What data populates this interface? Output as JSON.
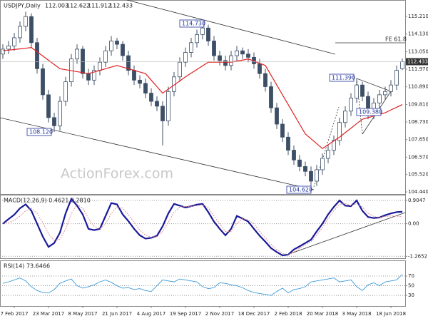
{
  "chart_data": [
    {
      "type": "candlestick",
      "title": "USDJPY,Daily",
      "color": "#3d4f66",
      "open": [
        112.9,
        113.2,
        113.4,
        113.9,
        114.6,
        115.2,
        113.6,
        112.0,
        110.4,
        109.0,
        108.5,
        110.0,
        111.2,
        112.6,
        113.2,
        111.7,
        111.3,
        111.9,
        112.4,
        113.1,
        113.7,
        113.5,
        112.8,
        111.9,
        111.3,
        111.1,
        110.5,
        110.0,
        109.7,
        108.8,
        110.6,
        111.5,
        112.4,
        113.0,
        113.6,
        114.1,
        114.5,
        113.7,
        112.8,
        112.5,
        112.2,
        112.8,
        113.1,
        112.9,
        112.7,
        112.3,
        111.7,
        110.9,
        109.6,
        108.6,
        107.8,
        107.0,
        106.4,
        106.0,
        105.7,
        105.1,
        105.8,
        106.5,
        107.0,
        107.6,
        108.7,
        109.4,
        110.2,
        111.0,
        110.3,
        109.2,
        109.9,
        110.4,
        110.6,
        111.0,
        112.003
      ],
      "high": [
        113.5,
        113.7,
        114.2,
        114.9,
        115.5,
        115.4,
        113.9,
        112.3,
        110.7,
        109.3,
        110.3,
        111.5,
        112.9,
        113.5,
        113.4,
        112.0,
        112.2,
        112.7,
        113.4,
        114.0,
        113.9,
        113.7,
        113.1,
        112.2,
        111.6,
        111.4,
        110.8,
        110.3,
        110.0,
        110.9,
        111.8,
        112.7,
        113.3,
        113.9,
        114.4,
        114.73,
        114.7,
        114.0,
        113.1,
        112.8,
        113.1,
        113.4,
        113.3,
        113.2,
        113.0,
        112.6,
        112.0,
        111.2,
        109.9,
        108.9,
        108.1,
        107.3,
        106.7,
        106.3,
        106.0,
        106.1,
        106.8,
        107.3,
        107.9,
        109.0,
        109.7,
        110.5,
        111.39,
        111.2,
        110.6,
        110.2,
        110.7,
        110.9,
        111.3,
        112.2,
        112.622
      ],
      "low": [
        112.6,
        112.9,
        113.1,
        113.6,
        114.3,
        113.3,
        111.7,
        110.1,
        108.7,
        108.12,
        108.2,
        109.7,
        110.9,
        112.3,
        111.4,
        111.0,
        111.0,
        111.6,
        112.1,
        112.8,
        113.2,
        112.5,
        111.6,
        111.0,
        110.8,
        110.2,
        109.7,
        109.4,
        107.3,
        108.5,
        110.3,
        111.2,
        112.1,
        112.7,
        113.3,
        113.8,
        113.4,
        112.5,
        112.2,
        111.9,
        111.9,
        112.5,
        112.6,
        112.4,
        112.0,
        111.4,
        110.6,
        109.3,
        108.3,
        107.5,
        106.7,
        106.1,
        105.7,
        105.4,
        104.62,
        104.8,
        105.5,
        106.2,
        106.7,
        107.3,
        108.4,
        109.1,
        109.9,
        110.0,
        108.9,
        108.9,
        109.6,
        110.1,
        110.3,
        110.7,
        111.912
      ],
      "close": [
        113.2,
        113.4,
        113.9,
        114.6,
        115.2,
        113.6,
        112.0,
        110.4,
        109.0,
        108.5,
        110.0,
        111.2,
        112.6,
        113.2,
        111.7,
        111.3,
        111.9,
        112.4,
        113.1,
        113.7,
        113.5,
        112.8,
        111.9,
        111.3,
        111.1,
        110.5,
        110.0,
        109.7,
        108.8,
        110.6,
        111.5,
        112.4,
        113.0,
        113.6,
        114.1,
        114.5,
        113.7,
        112.8,
        112.5,
        112.2,
        112.8,
        113.1,
        112.9,
        112.7,
        112.3,
        111.7,
        110.9,
        109.6,
        108.6,
        107.8,
        107.0,
        106.4,
        106.0,
        105.7,
        105.1,
        105.8,
        106.5,
        107.0,
        107.6,
        108.7,
        109.4,
        110.2,
        111.0,
        110.3,
        109.2,
        109.9,
        110.4,
        110.6,
        111.0,
        111.9,
        112.433
      ],
      "ma": {
        "color": "#e02020",
        "values": [
          113.1,
          113.14,
          113.18,
          113.22,
          113.26,
          113.3,
          113.04,
          112.78,
          112.52,
          112.26,
          112.0,
          111.94,
          111.88,
          111.82,
          111.76,
          111.7,
          111.8,
          111.9,
          112.0,
          112.1,
          112.2,
          112.1,
          112.0,
          111.9,
          111.8,
          111.7,
          111.3,
          110.9,
          110.5,
          110.75,
          111.0,
          111.25,
          111.5,
          111.73,
          111.95,
          112.18,
          112.4,
          112.4,
          112.4,
          112.4,
          112.4,
          112.47,
          112.53,
          112.6,
          112.47,
          112.33,
          112.2,
          111.6,
          111.0,
          110.4,
          109.8,
          109.2,
          108.6,
          108.0,
          107.7,
          107.4,
          107.1,
          107.33,
          107.57,
          107.8,
          108.08,
          108.35,
          108.63,
          108.9,
          109.0,
          109.1,
          109.2,
          109.3,
          109.47,
          109.63,
          109.8
        ]
      },
      "ylim": [
        104.31,
        116.13
      ],
      "yticks": [
        {
          "value": 115.21,
          "label": "115.210"
        },
        {
          "value": 114.13,
          "label": "114.130"
        },
        {
          "value": 113.05,
          "label": "113.050"
        },
        {
          "value": 111.97,
          "label": "111.970"
        },
        {
          "value": 110.89,
          "label": "110.890"
        },
        {
          "value": 109.81,
          "label": "109.810"
        },
        {
          "value": 108.73,
          "label": "108.730"
        },
        {
          "value": 107.65,
          "label": "107.650"
        },
        {
          "value": 106.57,
          "label": "106.570"
        },
        {
          "value": 105.52,
          "label": "105.520"
        },
        {
          "value": 104.44,
          "label": "104.440"
        }
      ],
      "annotations": [
        "114.730",
        "108.120",
        "104.620",
        "111.390",
        "109.380"
      ],
      "fe_label": "FE 61.8",
      "watermark": "ActionForex.com"
    },
    {
      "type": "line",
      "title": "MACD(12,26,9) 0.4621 0.2810",
      "series": [
        {
          "color": "#1a1a9a",
          "values": [
            0.0,
            0.18,
            0.35,
            0.6,
            0.75,
            0.5,
            0.0,
            -0.5,
            -0.9,
            -0.75,
            -0.35,
            0.4,
            0.96,
            0.7,
            0.36,
            -0.2,
            -0.25,
            -0.2,
            0.3,
            0.8,
            0.75,
            0.36,
            0.1,
            -0.2,
            -0.45,
            -0.58,
            -0.55,
            -0.47,
            -0.1,
            0.4,
            0.77,
            0.7,
            0.63,
            0.68,
            0.74,
            0.77,
            0.45,
            0.08,
            -0.2,
            -0.45,
            -0.2,
            0.3,
            0.2,
            0.08,
            -0.2,
            -0.47,
            -0.7,
            -0.95,
            -1.1,
            -1.23,
            -1.2,
            -1.0,
            -0.88,
            -0.75,
            -0.62,
            -0.3,
            0.0,
            0.36,
            0.65,
            0.9,
            0.7,
            0.68,
            0.9,
            0.5,
            0.26,
            0.22,
            0.24,
            0.33,
            0.4,
            0.45,
            0.4621
          ]
        },
        {
          "color": "#e08a8a",
          "values": [
            0.05,
            0.05,
            0.12,
            0.3,
            0.5,
            0.6,
            0.4,
            0.05,
            -0.4,
            -0.65,
            -0.6,
            -0.2,
            0.4,
            0.75,
            0.6,
            0.2,
            -0.1,
            -0.2,
            0.0,
            0.4,
            0.65,
            0.6,
            0.35,
            0.05,
            -0.25,
            -0.45,
            -0.52,
            -0.5,
            -0.3,
            0.05,
            0.45,
            0.65,
            0.67,
            0.67,
            0.7,
            0.74,
            0.62,
            0.3,
            0.0,
            -0.3,
            -0.3,
            0.0,
            0.2,
            0.15,
            0.0,
            -0.3,
            -0.55,
            -0.8,
            -1.0,
            -1.15,
            -1.2,
            -1.1,
            -0.95,
            -0.82,
            -0.7,
            -0.45,
            -0.15,
            0.2,
            0.5,
            0.75,
            0.78,
            0.7,
            0.78,
            0.65,
            0.4,
            0.28,
            0.25,
            0.28,
            0.3,
            0.29,
            0.281
          ]
        }
      ],
      "ylim": [
        -1.34,
        1.096
      ],
      "yticks": [
        0.9047,
        {
          "value": 0,
          "label": "0.00"
        },
        -1.2652
      ]
    },
    {
      "type": "line",
      "title": "RSI(14) 73.6466",
      "series": [
        {
          "color": "#3d9ad8",
          "values": [
            55,
            58,
            62,
            66,
            60,
            48,
            40,
            36,
            35,
            42,
            55,
            60,
            64,
            50,
            45,
            48,
            52,
            58,
            62,
            57,
            50,
            45,
            46,
            42,
            44,
            40,
            38,
            50,
            62,
            60,
            58,
            64,
            62,
            60,
            58,
            48,
            44,
            46,
            56,
            55,
            52,
            50,
            46,
            40,
            36,
            34,
            32,
            30,
            38,
            45,
            35,
            42,
            44,
            48,
            58,
            60,
            62,
            64,
            66,
            58,
            60,
            62,
            48,
            40,
            52,
            56,
            50,
            58,
            60,
            62,
            73.6466
          ]
        }
      ],
      "ylim": [
        8,
        101
      ],
      "yticks": [
        70,
        50,
        30
      ],
      "categories": [
        null,
        null,
        "7 Feb 2017",
        null,
        null,
        null,
        null,
        null,
        "23 Mar 2017",
        null,
        null,
        null,
        null,
        null,
        "8 May 2017",
        null,
        null,
        null,
        null,
        null,
        "21 Jun 2017",
        null,
        null,
        null,
        null,
        null,
        "4 Aug 2017",
        null,
        null,
        null,
        null,
        null,
        "19 Sep 2017",
        null,
        null,
        null,
        null,
        null,
        "2 Nov 2017",
        null,
        null,
        null,
        null,
        null,
        "18 Dec 2017",
        null,
        null,
        null,
        null,
        null,
        "2 Feb 2018",
        null,
        null,
        null,
        null,
        null,
        "20 Mar 2018",
        null,
        null,
        null,
        null,
        null,
        "3 May 2018",
        null,
        null,
        null,
        null,
        null,
        "18 Jun 2018",
        null,
        null
      ]
    }
  ]
}
